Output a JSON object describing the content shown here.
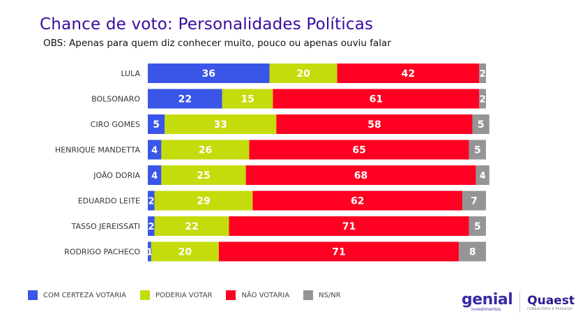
{
  "header": {
    "title": "Chance de voto: Personalidades Políticas",
    "subtitle": "OBS: Apenas para quem diz conhecer muito, pouco ou apenas ouviu falar"
  },
  "chart_data": {
    "type": "bar",
    "orientation": "horizontal",
    "stacked": true,
    "title": "Chance de voto: Personalidades Políticas",
    "categories": [
      "LULA",
      "BOLSONARO",
      "CIRO GOMES",
      "HENRIQUE MANDETTA",
      "JOÃO DORIA",
      "EDUARDO LEITE",
      "TASSO JEREISSATI",
      "RODRIGO PACHECO"
    ],
    "series": [
      {
        "name": "COM CERTEZA VOTARIA",
        "color": "#3a56e8",
        "values": [
          36,
          22,
          5,
          4,
          4,
          2,
          2,
          1
        ]
      },
      {
        "name": "PODERIA VOTAR",
        "color": "#c5dc0c",
        "values": [
          20,
          15,
          33,
          26,
          25,
          29,
          22,
          20
        ]
      },
      {
        "name": "NÃO VOTARIA",
        "color": "#ff0022",
        "values": [
          42,
          61,
          58,
          65,
          68,
          62,
          71,
          71
        ]
      },
      {
        "name": "NS/NR",
        "color": "#959595",
        "values": [
          2,
          2,
          5,
          5,
          4,
          7,
          5,
          8
        ]
      }
    ],
    "xlabel": "",
    "ylabel": "",
    "legend_position": "bottom-left",
    "grid": false
  },
  "legend": [
    {
      "label": "COM CERTEZA VOTARIA",
      "color": "#3a56e8"
    },
    {
      "label": "PODERIA VOTAR",
      "color": "#c5dc0c"
    },
    {
      "label": "NÃO VOTARIA",
      "color": "#ff0022"
    },
    {
      "label": "NS/NR",
      "color": "#959595"
    }
  ],
  "logos": {
    "genial": "genial",
    "genial_sub": "investimentos",
    "quaest": "Quaest",
    "quaest_sub": "CONSULTORIA E PESQUISA"
  }
}
